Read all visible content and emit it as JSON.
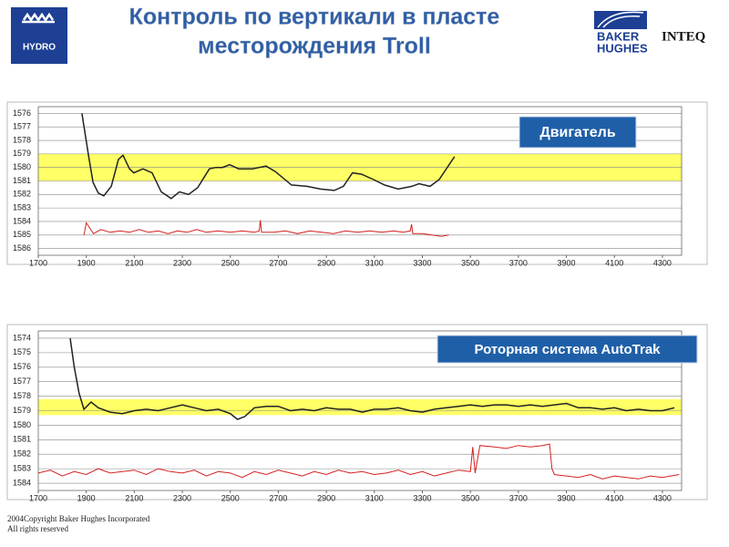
{
  "title": [
    "Контроль по вертикали в пласте",
    "месторождения Troll"
  ],
  "logos": {
    "hydro": "HYDRO",
    "baker": "BAKER",
    "hughes": "HUGHES",
    "inteq": "INTEQ"
  },
  "footer": [
    "2004Copyright Baker Hughes Incorporated",
    "All rights reserved"
  ],
  "chart_data": [
    {
      "type": "line",
      "annotation": "Двигатель",
      "xlim": [
        1700,
        4380
      ],
      "xticks": [
        1700,
        1900,
        2100,
        2300,
        2500,
        2700,
        2900,
        3100,
        3300,
        3500,
        3700,
        3900,
        4100,
        4300
      ],
      "ylim": [
        1575.5,
        1586.5
      ],
      "yticks": [
        1576,
        1577,
        1578,
        1579,
        1580,
        1581,
        1582,
        1583,
        1584,
        1585,
        1586
      ],
      "y_inverted": true,
      "grid": true,
      "band": [
        1579,
        1581
      ],
      "band_color": "#ffff66",
      "series": [
        {
          "color": "#222222",
          "x": [
            1882,
            1909,
            1928,
            1950,
            1973,
            2004,
            2034,
            2053,
            2080,
            2098,
            2136,
            2174,
            2212,
            2254,
            2288,
            2326,
            2364,
            2413,
            2440,
            2467,
            2497,
            2535,
            2592,
            2649,
            2687,
            2755,
            2820,
            2876,
            2933,
            2971,
            3009,
            3047,
            3097,
            3142,
            3199,
            3256,
            3286,
            3332,
            3370,
            3434
          ],
          "values": [
            1576.0,
            1579.1,
            1581.1,
            1581.9,
            1582.1,
            1581.4,
            1579.4,
            1579.1,
            1580.1,
            1580.4,
            1580.1,
            1580.4,
            1581.8,
            1582.3,
            1581.8,
            1582.0,
            1581.5,
            1580.1,
            1580.0,
            1580.0,
            1579.8,
            1580.1,
            1580.1,
            1579.9,
            1580.3,
            1581.3,
            1581.4,
            1581.6,
            1581.7,
            1581.4,
            1580.4,
            1580.5,
            1580.9,
            1581.3,
            1581.6,
            1581.4,
            1581.2,
            1581.4,
            1580.9,
            1579.2
          ]
        },
        {
          "color": "#d42020",
          "x": [
            1890,
            1900,
            1930,
            1960,
            2000,
            2040,
            2080,
            2120,
            2160,
            2200,
            2240,
            2280,
            2320,
            2360,
            2400,
            2450,
            2500,
            2550,
            2600,
            2620,
            2625,
            2630,
            2680,
            2730,
            2780,
            2830,
            2880,
            2930,
            2980,
            3030,
            3080,
            3130,
            3180,
            3220,
            3250,
            3255,
            3260,
            3300,
            3340,
            3380,
            3410
          ],
          "values": [
            1585.0,
            1584.1,
            1584.9,
            1584.6,
            1584.8,
            1584.7,
            1584.8,
            1584.6,
            1584.8,
            1584.7,
            1584.9,
            1584.7,
            1584.8,
            1584.6,
            1584.8,
            1584.7,
            1584.8,
            1584.7,
            1584.8,
            1584.7,
            1583.9,
            1584.8,
            1584.8,
            1584.7,
            1584.9,
            1584.7,
            1584.8,
            1584.9,
            1584.7,
            1584.8,
            1584.7,
            1584.8,
            1584.7,
            1584.8,
            1584.7,
            1584.2,
            1584.9,
            1584.9,
            1585.0,
            1585.1,
            1585.0
          ]
        }
      ]
    },
    {
      "type": "line",
      "annotation": "Роторная система AutoTrak",
      "xlim": [
        1700,
        4380
      ],
      "xticks": [
        1700,
        1900,
        2100,
        2300,
        2500,
        2700,
        2900,
        3100,
        3300,
        3500,
        3700,
        3900,
        4100,
        4300
      ],
      "ylim": [
        1573.5,
        1584.5
      ],
      "yticks": [
        1574,
        1575,
        1576,
        1577,
        1578,
        1579,
        1580,
        1581,
        1582,
        1583,
        1584
      ],
      "y_inverted": true,
      "grid": true,
      "band": [
        1578.2,
        1579.3
      ],
      "band_color": "#ffff66",
      "series": [
        {
          "color": "#222222",
          "x": [
            1833,
            1850,
            1870,
            1890,
            1920,
            1950,
            2000,
            2050,
            2100,
            2150,
            2200,
            2250,
            2300,
            2350,
            2400,
            2450,
            2500,
            2530,
            2560,
            2600,
            2650,
            2700,
            2750,
            2800,
            2850,
            2900,
            2950,
            3000,
            3050,
            3100,
            3150,
            3200,
            3250,
            3300,
            3350,
            3400,
            3450,
            3500,
            3550,
            3600,
            3650,
            3700,
            3750,
            3800,
            3850,
            3900,
            3950,
            4000,
            4050,
            4100,
            4150,
            4200,
            4250,
            4300,
            4350
          ],
          "values": [
            1574,
            1576,
            1577.8,
            1578.9,
            1578.4,
            1578.8,
            1579.1,
            1579.2,
            1579.0,
            1578.9,
            1579.0,
            1578.8,
            1578.6,
            1578.8,
            1579.0,
            1578.9,
            1579.2,
            1579.6,
            1579.4,
            1578.8,
            1578.7,
            1578.7,
            1579.0,
            1578.9,
            1579.0,
            1578.8,
            1578.9,
            1578.9,
            1579.1,
            1578.9,
            1578.9,
            1578.8,
            1579.0,
            1579.1,
            1578.9,
            1578.8,
            1578.7,
            1578.6,
            1578.7,
            1578.6,
            1578.6,
            1578.7,
            1578.6,
            1578.7,
            1578.6,
            1578.5,
            1578.8,
            1578.8,
            1578.9,
            1578.8,
            1579.0,
            1578.9,
            1579.0,
            1579.0,
            1578.8
          ]
        },
        {
          "color": "#d42020",
          "x": [
            1700,
            1750,
            1800,
            1850,
            1900,
            1950,
            2000,
            2050,
            2100,
            2150,
            2200,
            2250,
            2300,
            2350,
            2400,
            2450,
            2500,
            2550,
            2600,
            2650,
            2700,
            2750,
            2800,
            2850,
            2900,
            2950,
            3000,
            3050,
            3100,
            3150,
            3200,
            3250,
            3300,
            3350,
            3400,
            3450,
            3500,
            3510,
            3520,
            3540,
            3600,
            3650,
            3700,
            3750,
            3800,
            3830,
            3840,
            3850,
            3900,
            3950,
            4000,
            4050,
            4100,
            4150,
            4200,
            4250,
            4300,
            4370
          ],
          "values": [
            1583.3,
            1583.1,
            1583.5,
            1583.2,
            1583.4,
            1583.0,
            1583.3,
            1583.2,
            1583.1,
            1583.4,
            1583.0,
            1583.2,
            1583.3,
            1583.1,
            1583.5,
            1583.2,
            1583.3,
            1583.6,
            1583.2,
            1583.4,
            1583.1,
            1583.3,
            1583.5,
            1583.2,
            1583.4,
            1583.1,
            1583.3,
            1583.2,
            1583.4,
            1583.3,
            1583.1,
            1583.4,
            1583.2,
            1583.5,
            1583.3,
            1583.1,
            1583.2,
            1581.5,
            1583.3,
            1581.4,
            1581.5,
            1581.6,
            1581.4,
            1581.5,
            1581.4,
            1581.3,
            1583.0,
            1583.4,
            1583.5,
            1583.6,
            1583.4,
            1583.7,
            1583.5,
            1583.6,
            1583.7,
            1583.5,
            1583.6,
            1583.4
          ]
        }
      ]
    }
  ]
}
